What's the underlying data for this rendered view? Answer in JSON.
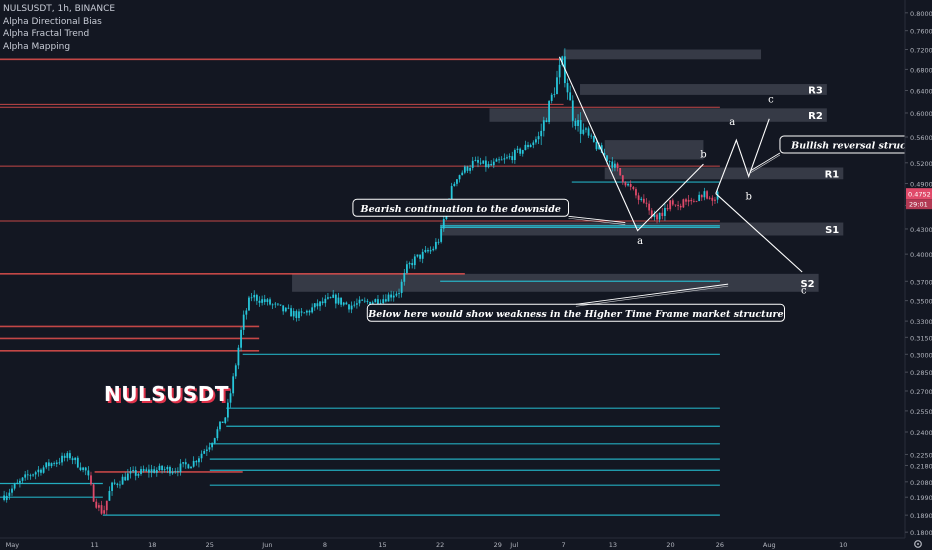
{
  "header": {
    "symbol_line": "NULSUSDT, 1h, BINANCE",
    "indicators": [
      "Alpha Directional Bias",
      "Alpha Fractal Trend",
      "Alpha Mapping"
    ]
  },
  "watermark": "NULSUSDT",
  "colors": {
    "background": "#131722",
    "up_candle": "#26c6da",
    "down_candle": "#e04a6a",
    "resistance_line": "#ef5350",
    "support_line": "#26c6da",
    "zone_box": "#3a3e4a",
    "annotation": "#ffffff"
  },
  "chart_data": {
    "type": "candlestick",
    "symbol": "NULSUSDT",
    "timeframe": "1h",
    "exchange": "BINANCE",
    "y_axis": {
      "scale": "log",
      "ticks": [
        "0.8000",
        "0.7600",
        "0.7200",
        "0.6800",
        "0.6400",
        "0.6000",
        "0.5600",
        "0.5200",
        "0.4900",
        "0.4600",
        "0.4300",
        "0.4000",
        "0.3700",
        "0.3500",
        "0.3300",
        "0.3150",
        "0.3000",
        "0.2850",
        "0.2700",
        "0.2550",
        "0.2400",
        "0.2250",
        "0.2180",
        "0.2080",
        "0.1990",
        "0.1890",
        "0.1800"
      ],
      "range": [
        0.177,
        0.83
      ]
    },
    "x_axis": {
      "ticks": [
        {
          "label": "May",
          "day": 0
        },
        {
          "label": "11",
          "day": 10
        },
        {
          "label": "18",
          "day": 17
        },
        {
          "label": "25",
          "day": 24
        },
        {
          "label": "Jun",
          "day": 31
        },
        {
          "label": "8",
          "day": 38
        },
        {
          "label": "15",
          "day": 45
        },
        {
          "label": "22",
          "day": 52
        },
        {
          "label": "29",
          "day": 59
        },
        {
          "label": "Jul",
          "day": 61
        },
        {
          "label": "7",
          "day": 67
        },
        {
          "label": "13",
          "day": 73
        },
        {
          "label": "20",
          "day": 80
        },
        {
          "label": "26",
          "day": 86
        },
        {
          "label": "Aug",
          "day": 92
        },
        {
          "label": "10",
          "day": 101
        }
      ],
      "range": [
        -1.5,
        108.5
      ]
    },
    "price_path": [
      [
        -1.0,
        0.2
      ],
      [
        2,
        0.212
      ],
      [
        5,
        0.22
      ],
      [
        7,
        0.224
      ],
      [
        9,
        0.214
      ],
      [
        10,
        0.197
      ],
      [
        11,
        0.19
      ],
      [
        12,
        0.205
      ],
      [
        14,
        0.212
      ],
      [
        17,
        0.215
      ],
      [
        20,
        0.216
      ],
      [
        22,
        0.22
      ],
      [
        24,
        0.232
      ],
      [
        26,
        0.252
      ],
      [
        27,
        0.285
      ],
      [
        28,
        0.33
      ],
      [
        29,
        0.355
      ],
      [
        31,
        0.348
      ],
      [
        33,
        0.34
      ],
      [
        35,
        0.335
      ],
      [
        37,
        0.345
      ],
      [
        39,
        0.352
      ],
      [
        41,
        0.345
      ],
      [
        43,
        0.348
      ],
      [
        45,
        0.352
      ],
      [
        47,
        0.36
      ],
      [
        48,
        0.385
      ],
      [
        49,
        0.395
      ],
      [
        51,
        0.405
      ],
      [
        52,
        0.42
      ],
      [
        53,
        0.47
      ],
      [
        54,
        0.5
      ],
      [
        56,
        0.52
      ],
      [
        58,
        0.515
      ],
      [
        60,
        0.525
      ],
      [
        62,
        0.54
      ],
      [
        64,
        0.56
      ],
      [
        65,
        0.6
      ],
      [
        66,
        0.65
      ],
      [
        66.8,
        0.695
      ],
      [
        67.4,
        0.65
      ],
      [
        68,
        0.6
      ],
      [
        69,
        0.575
      ],
      [
        70,
        0.56
      ],
      [
        71,
        0.545
      ],
      [
        72,
        0.53
      ],
      [
        73,
        0.518
      ],
      [
        74,
        0.5
      ],
      [
        75,
        0.485
      ],
      [
        76,
        0.47
      ],
      [
        77,
        0.458
      ],
      [
        78,
        0.445
      ],
      [
        79,
        0.452
      ],
      [
        80,
        0.465
      ],
      [
        81,
        0.46
      ],
      [
        82,
        0.472
      ],
      [
        83,
        0.468
      ],
      [
        84,
        0.478
      ],
      [
        85,
        0.47
      ],
      [
        86,
        0.475
      ]
    ],
    "resistance_lines": [
      {
        "price": 0.7,
        "x0": -1.5,
        "x1": 67
      },
      {
        "price": 0.615,
        "x0": -1.5,
        "x1": 67
      },
      {
        "price": 0.61,
        "x0": -1.5,
        "x1": 86
      },
      {
        "price": 0.515,
        "x0": -1.5,
        "x1": 86
      },
      {
        "price": 0.44,
        "x0": -1.5,
        "x1": 86
      },
      {
        "price": 0.378,
        "x0": -1.5,
        "x1": 55
      },
      {
        "price": 0.325,
        "x0": -1.5,
        "x1": 30
      },
      {
        "price": 0.314,
        "x0": -1.5,
        "x1": 30
      },
      {
        "price": 0.303,
        "x0": -1.5,
        "x1": 30
      },
      {
        "price": 0.214,
        "x0": 10,
        "x1": 28
      }
    ],
    "support_lines": [
      {
        "price": 0.492,
        "x0": 68,
        "x1": 86
      },
      {
        "price": 0.434,
        "x0": 52,
        "x1": 86
      },
      {
        "price": 0.432,
        "x0": 52,
        "x1": 86
      },
      {
        "price": 0.37,
        "x0": 52,
        "x1": 86
      },
      {
        "price": 0.3,
        "x0": 28,
        "x1": 86
      },
      {
        "price": 0.257,
        "x0": 26,
        "x1": 86
      },
      {
        "price": 0.244,
        "x0": 26,
        "x1": 86
      },
      {
        "price": 0.232,
        "x0": 24,
        "x1": 86
      },
      {
        "price": 0.222,
        "x0": 24,
        "x1": 86
      },
      {
        "price": 0.215,
        "x0": 24,
        "x1": 86
      },
      {
        "price": 0.206,
        "x0": 24,
        "x1": 86
      },
      {
        "price": 0.189,
        "x0": 11,
        "x1": 86
      },
      {
        "price": 0.207,
        "x0": -1.5,
        "x1": 11
      },
      {
        "price": 0.199,
        "x0": -1.5,
        "x1": 11
      }
    ],
    "zones": [
      {
        "label": "",
        "top": 0.72,
        "bottom": 0.7,
        "x0": 67,
        "x1": 91
      },
      {
        "label": "R3",
        "top": 0.652,
        "bottom": 0.632,
        "x0": 69,
        "x1": 99
      },
      {
        "label": "R2",
        "top": 0.608,
        "bottom": 0.585,
        "x0": 58,
        "x1": 99
      },
      {
        "label": "",
        "top": 0.555,
        "bottom": 0.525,
        "x0": 72,
        "x1": 84
      },
      {
        "label": "R1",
        "top": 0.513,
        "bottom": 0.496,
        "x0": 72,
        "x1": 101
      },
      {
        "label": "S1",
        "top": 0.438,
        "bottom": 0.422,
        "x0": 52,
        "x1": 101
      },
      {
        "label": "S2",
        "top": 0.378,
        "bottom": 0.359,
        "x0": 34,
        "x1": 98
      }
    ],
    "current_price": {
      "label": "0.4752",
      "value": 0.4752
    },
    "countdown": {
      "label": "29:01"
    },
    "wave_paths": [
      {
        "name": "projection-up",
        "points": [
          [
            85.5,
            0.476
          ],
          [
            88,
            0.555
          ],
          [
            89.5,
            0.5
          ],
          [
            92,
            0.59
          ]
        ]
      },
      {
        "name": "projection-down",
        "points": [
          [
            85.5,
            0.476
          ],
          [
            96,
            0.38
          ]
        ]
      },
      {
        "name": "bear-zigzag",
        "points": [
          [
            66.5,
            0.705
          ],
          [
            76,
            0.428
          ],
          [
            84,
            0.518
          ]
        ]
      }
    ],
    "wave_labels": [
      {
        "text": "a",
        "x": 76.3,
        "y": 0.412
      },
      {
        "text": "b",
        "x": 84,
        "y": 0.528
      },
      {
        "text": "a",
        "x": 87.5,
        "y": 0.58
      },
      {
        "text": "b",
        "x": 89.5,
        "y": 0.468
      },
      {
        "text": "c",
        "x": 92.2,
        "y": 0.618
      },
      {
        "text": "c",
        "x": 96.2,
        "y": 0.357
      }
    ],
    "callouts": [
      {
        "text": "Bullish reversal structure",
        "box": [
          103,
          0.548
        ],
        "target": [
          89.7,
          0.508
        ]
      },
      {
        "text": "Bearish continuation to the downside",
        "box": [
          54.5,
          0.457
        ],
        "target": [
          74.5,
          0.438
        ]
      },
      {
        "text": "Below here would show weakness in the Higher Time Frame market structure",
        "box": [
          68.5,
          0.338
        ],
        "target": [
          87,
          0.367
        ]
      }
    ]
  }
}
